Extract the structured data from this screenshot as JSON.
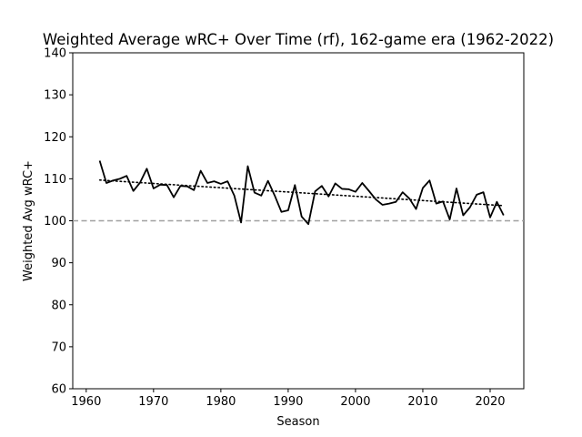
{
  "chart_data": {
    "type": "line",
    "title": "Weighted Average wRC+ Over Time (rf), 162-game era (1962-2022)",
    "xlabel": "Season",
    "ylabel": "Weighted Avg wRC+",
    "xlim": [
      1958.0,
      2025.0
    ],
    "ylim": [
      60,
      140
    ],
    "xticks": [
      1960,
      1970,
      1980,
      1990,
      2000,
      2010,
      2020
    ],
    "yticks": [
      60,
      70,
      80,
      90,
      100,
      110,
      120,
      130,
      140
    ],
    "grid": false,
    "reference_line": {
      "y": 100,
      "style": "dashed",
      "color": "#a0a0a0"
    },
    "trend_line": {
      "style": "dotted",
      "color": "#000000",
      "x": [
        1962,
        2022
      ],
      "y": [
        109.7,
        103.6
      ]
    },
    "series": [
      {
        "color": "#000000",
        "x": [
          1962,
          1963,
          1964,
          1965,
          1966,
          1967,
          1968,
          1969,
          1970,
          1971,
          1972,
          1973,
          1974,
          1975,
          1976,
          1977,
          1978,
          1979,
          1980,
          1981,
          1982,
          1983,
          1984,
          1985,
          1986,
          1987,
          1988,
          1989,
          1990,
          1991,
          1992,
          1993,
          1994,
          1995,
          1996,
          1997,
          1998,
          1999,
          2000,
          2001,
          2002,
          2003,
          2004,
          2005,
          2006,
          2007,
          2008,
          2009,
          2010,
          2011,
          2012,
          2013,
          2014,
          2015,
          2016,
          2017,
          2018,
          2019,
          2020,
          2021,
          2022
        ],
        "y": [
          114.3,
          109.0,
          109.6,
          110.0,
          110.7,
          107.1,
          109.1,
          112.4,
          107.7,
          108.6,
          108.5,
          105.6,
          108.3,
          108.2,
          107.3,
          111.9,
          109.0,
          109.4,
          108.8,
          109.4,
          106.0,
          99.6,
          113.0,
          106.7,
          106.0,
          109.5,
          106.0,
          102.1,
          102.5,
          108.5,
          101.0,
          99.2,
          107.0,
          108.3,
          105.8,
          108.9,
          107.6,
          107.5,
          106.9,
          109.0,
          107.1,
          105.1,
          103.8,
          104.1,
          104.5,
          106.8,
          105.3,
          102.8,
          107.8,
          109.6,
          104.1,
          104.6,
          100.3,
          107.7,
          101.3,
          103.2,
          106.2,
          106.8,
          100.8,
          104.5,
          101.3
        ]
      }
    ]
  }
}
